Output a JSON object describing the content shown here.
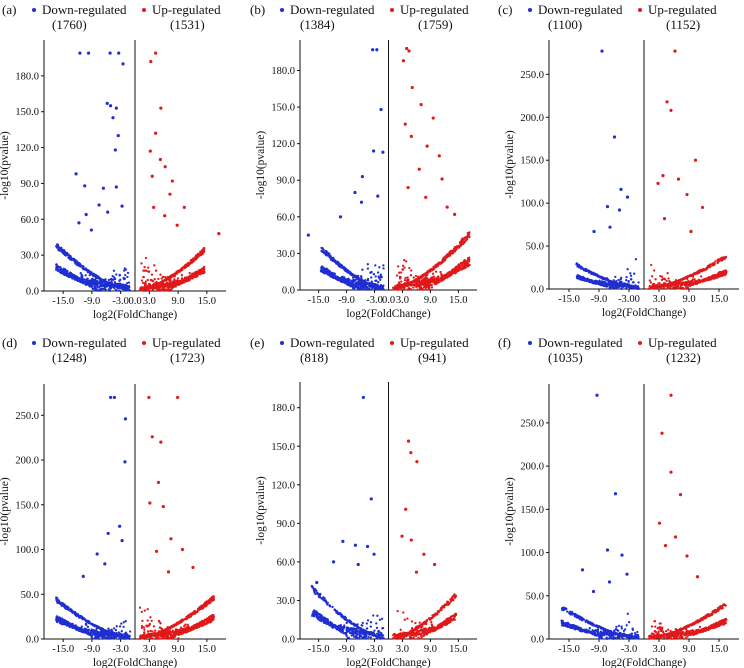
{
  "colors": {
    "down": "#1f2fd1",
    "up": "#e0191b",
    "axis": "#111111"
  },
  "chart_data": [
    {
      "type": "scatter",
      "label": "(a)",
      "title": "",
      "legend": {
        "down_label": "Down-regulated",
        "up_label": "Up-regulated",
        "down_count": "(1760)",
        "up_count": "(1531)"
      },
      "xlabel": "log2(FoldChange)",
      "ylabel": "-log10(pvalue)",
      "xlim": [
        -19,
        19
      ],
      "ylim": [
        0,
        210
      ],
      "xticks": [
        -15,
        -9,
        -3,
        3,
        9,
        15
      ],
      "xtick_labels": [
        "-15.0",
        "-9.0",
        "-3.0",
        "3.0",
        "9.0",
        "15.0"
      ],
      "yticks": [
        0,
        30,
        60,
        90,
        120,
        150,
        180
      ],
      "ytick_labels": [
        "0.0",
        "30.0",
        "60.0",
        "90.0",
        "120.0",
        "150.0",
        "180.0"
      ],
      "zero_label": "0.0",
      "down_points": [
        [
          -11.5,
          199
        ],
        [
          -9.7,
          199
        ],
        [
          -5.2,
          199
        ],
        [
          -3.4,
          199
        ],
        [
          -2.5,
          190
        ],
        [
          -5.8,
          157
        ],
        [
          -5.1,
          155
        ],
        [
          -3.9,
          153
        ],
        [
          -4.6,
          145
        ],
        [
          -3.5,
          130
        ],
        [
          -4.1,
          118
        ],
        [
          -12.3,
          98
        ],
        [
          -10.5,
          88
        ],
        [
          -6.6,
          86
        ],
        [
          -3.9,
          87
        ],
        [
          -10.2,
          64
        ],
        [
          -7.5,
          72
        ],
        [
          -11.7,
          57
        ],
        [
          -9.1,
          51
        ],
        [
          -5.7,
          66
        ],
        [
          -2.7,
          71
        ]
      ],
      "up_points": [
        [
          4.3,
          199
        ],
        [
          3.3,
          192
        ],
        [
          5.4,
          153
        ],
        [
          4.3,
          132
        ],
        [
          3.2,
          117
        ],
        [
          5.3,
          110
        ],
        [
          6.3,
          104
        ],
        [
          3.6,
          96
        ],
        [
          7.8,
          92
        ],
        [
          7.3,
          81
        ],
        [
          10.3,
          70
        ],
        [
          3.9,
          70
        ],
        [
          6.2,
          63
        ],
        [
          8.8,
          55
        ],
        [
          17.5,
          48
        ]
      ],
      "down_scatter": {
        "n": 520,
        "xmax": 16.5,
        "base": 3.0,
        "envelope": 38
      },
      "up_scatter": {
        "n": 520,
        "xmax": 14.5,
        "base": 2.0,
        "envelope": 34
      }
    },
    {
      "type": "scatter",
      "label": "(b)",
      "title": "",
      "legend": {
        "down_label": "Down-regulated",
        "up_label": "Up-regulated",
        "down_count": "(1384)",
        "up_count": "(1759)"
      },
      "xlabel": "log2(FoldChange)",
      "ylabel": "-log10(pvalue)",
      "xlim": [
        -19,
        19
      ],
      "ylim": [
        0,
        205
      ],
      "xticks": [
        -15,
        -9,
        -3,
        3,
        9,
        15
      ],
      "xtick_labels": [
        "-15.0",
        "-9.0",
        "-3.0",
        "3.0",
        "9.0",
        "15.0"
      ],
      "yticks": [
        0,
        30,
        60,
        90,
        120,
        150,
        180
      ],
      "ytick_labels": [
        "0.0",
        "30.0",
        "60.0",
        "90.0",
        "120.0",
        "150.0",
        "180.0"
      ],
      "zero_label": "0.0",
      "down_points": [
        [
          -2.5,
          197
        ],
        [
          -3.4,
          197
        ],
        [
          -1.6,
          148
        ],
        [
          -3.2,
          114
        ],
        [
          -1.2,
          113
        ],
        [
          -5.6,
          93
        ],
        [
          -2.3,
          77
        ],
        [
          -5.8,
          72
        ],
        [
          -7.2,
          80
        ],
        [
          -10.3,
          60
        ],
        [
          -17.2,
          45
        ]
      ],
      "up_points": [
        [
          3.9,
          198
        ],
        [
          4.4,
          196
        ],
        [
          3.2,
          188
        ],
        [
          5.1,
          166
        ],
        [
          7.0,
          152
        ],
        [
          9.6,
          141
        ],
        [
          3.6,
          136
        ],
        [
          4.9,
          126
        ],
        [
          8.3,
          118
        ],
        [
          10.9,
          110
        ],
        [
          6.6,
          99
        ],
        [
          11.5,
          91
        ],
        [
          4.2,
          84
        ],
        [
          8.0,
          76
        ],
        [
          12.6,
          68
        ],
        [
          14.2,
          62
        ]
      ],
      "down_scatter": {
        "n": 440,
        "xmax": 14.5,
        "base": 2.6,
        "envelope": 34
      },
      "up_scatter": {
        "n": 560,
        "xmax": 17.5,
        "base": 2.4,
        "envelope": 46
      }
    },
    {
      "type": "scatter",
      "label": "(c)",
      "title": "",
      "legend": {
        "down_label": "Down-regulated",
        "up_label": "Up-regulated",
        "down_count": "(1100)",
        "up_count": "(1152)"
      },
      "xlabel": "log2(FoldChange)",
      "ylabel": "-log10(pvalue)",
      "xlim": [
        -19,
        19
      ],
      "ylim": [
        0,
        290
      ],
      "xticks": [
        -15,
        -9,
        -3,
        3,
        9,
        15
      ],
      "xtick_labels": [
        "-15.0",
        "-9.0",
        "-3.00",
        "3.0",
        "9.0",
        "15.0"
      ],
      "yticks": [
        0,
        50,
        100,
        150,
        200,
        250
      ],
      "ytick_labels": [
        "0.0",
        "50.0",
        "100.0",
        "150.0",
        "200.0",
        "250.0"
      ],
      "zero_label": "",
      "down_points": [
        [
          -8.4,
          277
        ],
        [
          -5.9,
          177
        ],
        [
          -4.6,
          116
        ],
        [
          -3.3,
          107
        ],
        [
          -7.3,
          96
        ],
        [
          -4.9,
          92
        ],
        [
          -10.0,
          67
        ],
        [
          -6.8,
          72
        ]
      ],
      "up_points": [
        [
          6.2,
          277
        ],
        [
          4.6,
          218
        ],
        [
          5.4,
          208
        ],
        [
          10.3,
          150
        ],
        [
          3.8,
          132
        ],
        [
          6.9,
          128
        ],
        [
          2.8,
          123
        ],
        [
          8.6,
          110
        ],
        [
          11.7,
          95
        ],
        [
          4.1,
          82
        ],
        [
          9.4,
          67
        ]
      ],
      "down_scatter": {
        "n": 340,
        "xmax": 13.5,
        "base": 3.0,
        "envelope": 28
      },
      "up_scatter": {
        "n": 380,
        "xmax": 16.5,
        "base": 2.6,
        "envelope": 38
      }
    },
    {
      "type": "scatter",
      "label": "(d)",
      "title": "",
      "legend": {
        "down_label": "Down-regulated",
        "up_label": "Up-regulated",
        "down_count": "(1248)",
        "up_count": "(1723)"
      },
      "xlabel": "log2(FoldChange)",
      "ylabel": "-log10(pvalue)",
      "xlim": [
        -19,
        19
      ],
      "ylim": [
        0,
        285
      ],
      "xticks": [
        -15,
        -9,
        -3,
        3,
        9,
        15
      ],
      "xtick_labels": [
        "-15.0",
        "-9.0",
        "-3.0",
        "3.0",
        "9.0",
        "15.0"
      ],
      "yticks": [
        0,
        50,
        100,
        150,
        200,
        250
      ],
      "ytick_labels": [
        "0.0",
        "50.0",
        "100.0",
        "150.0",
        "200.0",
        "250.0"
      ],
      "zero_label": "",
      "down_points": [
        [
          -5.1,
          270
        ],
        [
          -4.3,
          270
        ],
        [
          -2.0,
          246
        ],
        [
          -2.1,
          198
        ],
        [
          -3.2,
          126
        ],
        [
          -5.6,
          118
        ],
        [
          -7.9,
          95
        ],
        [
          -2.7,
          110
        ],
        [
          -10.8,
          70
        ],
        [
          -6.3,
          84
        ]
      ],
      "up_points": [
        [
          2.9,
          270
        ],
        [
          8.9,
          270
        ],
        [
          3.6,
          226
        ],
        [
          5.4,
          220
        ],
        [
          4.9,
          175
        ],
        [
          3.1,
          152
        ],
        [
          5.9,
          148
        ],
        [
          7.5,
          112
        ],
        [
          9.9,
          100
        ],
        [
          4.5,
          98
        ],
        [
          12.1,
          80
        ],
        [
          7.0,
          75
        ]
      ],
      "down_scatter": {
        "n": 420,
        "xmax": 16.5,
        "base": 2.8,
        "envelope": 44
      },
      "up_scatter": {
        "n": 560,
        "xmax": 16.5,
        "base": 2.5,
        "envelope": 46
      }
    },
    {
      "type": "scatter",
      "label": "(e)",
      "title": "",
      "legend": {
        "down_label": "Down-regulated",
        "up_label": "Up-regulated",
        "down_count": "(818)",
        "up_count": "(941)"
      },
      "xlabel": "log2(FoldChange)",
      "ylabel": "-log10(pvalue)",
      "xlim": [
        -19,
        19
      ],
      "ylim": [
        0,
        200
      ],
      "xticks": [
        -15,
        -9,
        -3,
        3,
        9,
        15
      ],
      "xtick_labels": [
        "-15.0",
        "-9.0",
        "-3.0",
        "3.0",
        "9.0",
        "15.0"
      ],
      "yticks": [
        0,
        30,
        60,
        90,
        120,
        150,
        180
      ],
      "ytick_labels": [
        "0.0",
        "30.0",
        "60.0",
        "90.0",
        "120.0",
        "150.0",
        "180.0"
      ],
      "zero_label": "",
      "down_points": [
        [
          -5.4,
          188
        ],
        [
          -3.7,
          109
        ],
        [
          -9.8,
          76
        ],
        [
          -7.1,
          73
        ],
        [
          -4.5,
          72
        ],
        [
          -11.8,
          60
        ],
        [
          -3.1,
          66
        ],
        [
          -15.4,
          44
        ],
        [
          -6.5,
          58
        ]
      ],
      "up_points": [
        [
          4.3,
          154
        ],
        [
          4.8,
          145
        ],
        [
          6.1,
          138
        ],
        [
          3.7,
          101
        ],
        [
          2.9,
          80
        ],
        [
          4.9,
          77
        ],
        [
          7.6,
          66
        ],
        [
          9.9,
          58
        ],
        [
          6.0,
          52
        ]
      ],
      "down_scatter": {
        "n": 300,
        "xmax": 16.5,
        "base": 2.4,
        "envelope": 40
      },
      "up_scatter": {
        "n": 320,
        "xmax": 14.5,
        "base": 2.2,
        "envelope": 34
      }
    },
    {
      "type": "scatter",
      "label": "(f)",
      "title": "",
      "legend": {
        "down_label": "Down-regulated",
        "up_label": "Up-regulated",
        "down_count": "(1035)",
        "up_count": "(1232)"
      },
      "xlabel": "log2(FoldChange)",
      "ylabel": "-log10(pvalue)",
      "xlim": [
        -19,
        19
      ],
      "ylim": [
        0,
        295
      ],
      "xticks": [
        -15,
        -9,
        -3,
        3,
        9,
        15
      ],
      "xtick_labels": [
        "-15.0",
        "-9.0",
        "-3.0",
        "3.0",
        "9.0",
        "15.0"
      ],
      "yticks": [
        0,
        50,
        100,
        150,
        200,
        250
      ],
      "ytick_labels": [
        "0.0",
        "50.0",
        "100.0",
        "150.0",
        "200.0",
        "250.0"
      ],
      "zero_label": "",
      "down_points": [
        [
          -9.4,
          282
        ],
        [
          -5.7,
          168
        ],
        [
          -7.3,
          103
        ],
        [
          -4.4,
          97
        ],
        [
          -3.4,
          75
        ],
        [
          -12.3,
          80
        ],
        [
          -6.9,
          66
        ],
        [
          -10.1,
          55
        ]
      ],
      "up_points": [
        [
          5.4,
          282
        ],
        [
          3.6,
          238
        ],
        [
          5.4,
          193
        ],
        [
          7.3,
          167
        ],
        [
          3.1,
          134
        ],
        [
          6.3,
          118
        ],
        [
          4.3,
          108
        ],
        [
          8.6,
          96
        ],
        [
          10.7,
          72
        ]
      ],
      "down_scatter": {
        "n": 360,
        "xmax": 16.5,
        "base": 2.8,
        "envelope": 36
      },
      "up_scatter": {
        "n": 400,
        "xmax": 16.5,
        "base": 2.4,
        "envelope": 40
      }
    }
  ]
}
